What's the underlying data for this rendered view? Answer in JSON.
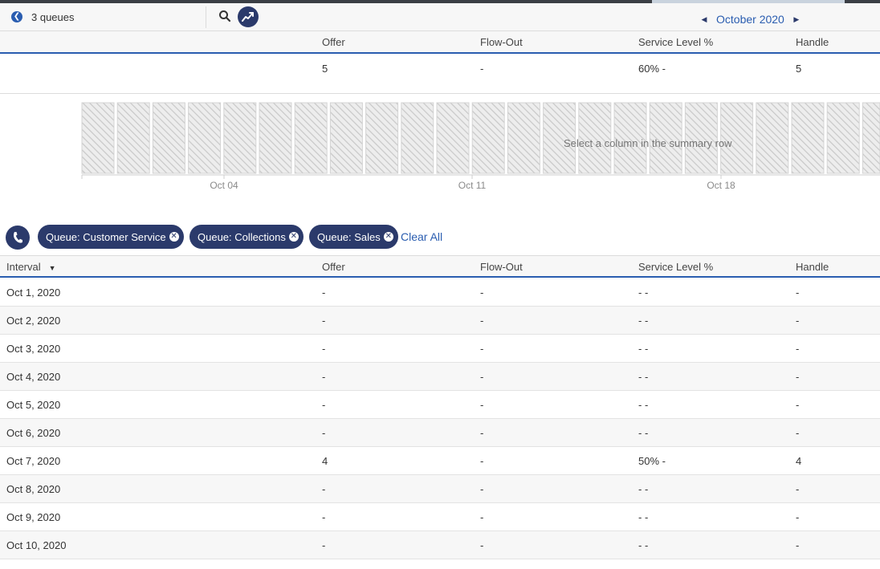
{
  "toolbar": {
    "queues_count": "3 queues",
    "month_label": "October 2020",
    "prev_arrow": "◀",
    "next_arrow": "▶",
    "icons": [
      "back-icon",
      "search-icon",
      "chart-icon"
    ]
  },
  "columns": {
    "interval": "Interval",
    "offer": "Offer",
    "flow_out": "Flow-Out",
    "service_level": "Service Level %",
    "handle": "Handle"
  },
  "summary": {
    "offer": "5",
    "flow_out": "-",
    "service_level": "60% -",
    "handle": "5"
  },
  "chart": {
    "placeholder": "Select a column in the summary row",
    "tick_labels": [
      "Oct 04",
      "Oct 11",
      "Oct 18"
    ]
  },
  "filters": {
    "chips": [
      "Queue: Customer Service",
      "Queue: Collections",
      "Queue: Sales"
    ],
    "clear_all": "Clear All",
    "remove_icon": "✕"
  },
  "rows": [
    {
      "interval": "Oct 1, 2020",
      "offer": "-",
      "flow_out": "-",
      "service_level": "- -",
      "handle": "-"
    },
    {
      "interval": "Oct 2, 2020",
      "offer": "-",
      "flow_out": "-",
      "service_level": "- -",
      "handle": "-"
    },
    {
      "interval": "Oct 3, 2020",
      "offer": "-",
      "flow_out": "-",
      "service_level": "- -",
      "handle": "-"
    },
    {
      "interval": "Oct 4, 2020",
      "offer": "-",
      "flow_out": "-",
      "service_level": "- -",
      "handle": "-"
    },
    {
      "interval": "Oct 5, 2020",
      "offer": "-",
      "flow_out": "-",
      "service_level": "- -",
      "handle": "-"
    },
    {
      "interval": "Oct 6, 2020",
      "offer": "-",
      "flow_out": "-",
      "service_level": "- -",
      "handle": "-"
    },
    {
      "interval": "Oct 7, 2020",
      "offer": "4",
      "flow_out": "-",
      "service_level": "50% -",
      "handle": "4"
    },
    {
      "interval": "Oct 8, 2020",
      "offer": "-",
      "flow_out": "-",
      "service_level": "- -",
      "handle": "-"
    },
    {
      "interval": "Oct 9, 2020",
      "offer": "-",
      "flow_out": "-",
      "service_level": "- -",
      "handle": "-"
    },
    {
      "interval": "Oct 10, 2020",
      "offer": "-",
      "flow_out": "-",
      "service_level": "- -",
      "handle": "-"
    }
  ],
  "colors": {
    "accent": "#2a5db0",
    "chip_bg": "#2b3a6b",
    "hatch": "#c8c8c8",
    "header_bg": "#f7f7f7"
  }
}
